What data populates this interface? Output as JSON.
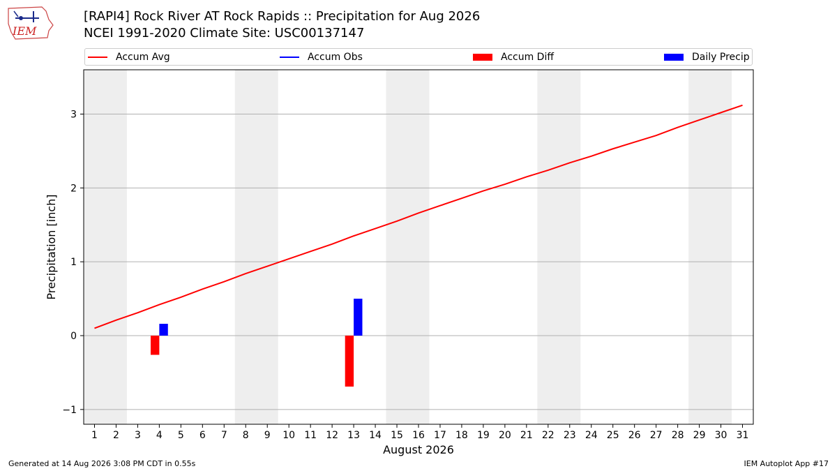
{
  "header": {
    "title_line1": "[RAPI4] Rock River  AT Rock Rapids :: Precipitation for Aug 2026",
    "title_line2": "NCEI 1991-2020 Climate Site: USC00137147",
    "logo_text": "IEM"
  },
  "legend": {
    "items": [
      {
        "label": "Accum Avg",
        "color": "#ff0000",
        "kind": "line"
      },
      {
        "label": "Accum Obs",
        "color": "#0000ff",
        "kind": "line"
      },
      {
        "label": "Accum Diff",
        "color": "#ff0000",
        "kind": "patch"
      },
      {
        "label": "Daily Precip",
        "color": "#0000ff",
        "kind": "patch"
      }
    ]
  },
  "footer": {
    "generated": "Generated at 14 Aug 2026 3:08 PM CDT in 0.55s",
    "app": "IEM Autoplot App #17"
  },
  "chart_data": {
    "type": "line",
    "xlabel": "August 2026",
    "ylabel": "Precipitation [inch]",
    "xlim": [
      0.5,
      31.5
    ],
    "ylim": [
      -1.2,
      3.6
    ],
    "yticks": [
      -1,
      0,
      1,
      2,
      3
    ],
    "ytick_labels": [
      "−1",
      "0",
      "1",
      "2",
      "3"
    ],
    "xticks": [
      1,
      2,
      3,
      4,
      5,
      6,
      7,
      8,
      9,
      10,
      11,
      12,
      13,
      14,
      15,
      16,
      17,
      18,
      19,
      20,
      21,
      22,
      23,
      24,
      25,
      26,
      27,
      28,
      29,
      30,
      31
    ],
    "grid": "horizontal",
    "weekend_shading": [
      [
        0.5,
        2.5
      ],
      [
        7.5,
        9.5
      ],
      [
        14.5,
        16.5
      ],
      [
        21.5,
        23.5
      ],
      [
        28.5,
        30.5
      ]
    ],
    "shade_color": "#eeeeee",
    "series": [
      {
        "name": "Accum Avg",
        "kind": "line",
        "color": "#ff0000",
        "x": [
          1,
          2,
          3,
          4,
          5,
          6,
          7,
          8,
          9,
          10,
          11,
          12,
          13,
          14,
          15,
          16,
          17,
          18,
          19,
          20,
          21,
          22,
          23,
          24,
          25,
          26,
          27,
          28,
          29,
          30,
          31
        ],
        "values": [
          0.1,
          0.21,
          0.31,
          0.42,
          0.52,
          0.63,
          0.73,
          0.84,
          0.94,
          1.04,
          1.14,
          1.24,
          1.35,
          1.45,
          1.55,
          1.66,
          1.76,
          1.86,
          1.96,
          2.05,
          2.15,
          2.24,
          2.34,
          2.43,
          2.53,
          2.62,
          2.71,
          2.82,
          2.92,
          3.02,
          3.12
        ]
      },
      {
        "name": "Accum Diff",
        "kind": "bar",
        "color": "#ff0000",
        "x": [
          4,
          13
        ],
        "values": [
          -0.26,
          -0.69
        ]
      },
      {
        "name": "Daily Precip",
        "kind": "bar",
        "color": "#0000ff",
        "x": [
          4,
          13
        ],
        "values": [
          0.16,
          0.5
        ]
      }
    ]
  }
}
